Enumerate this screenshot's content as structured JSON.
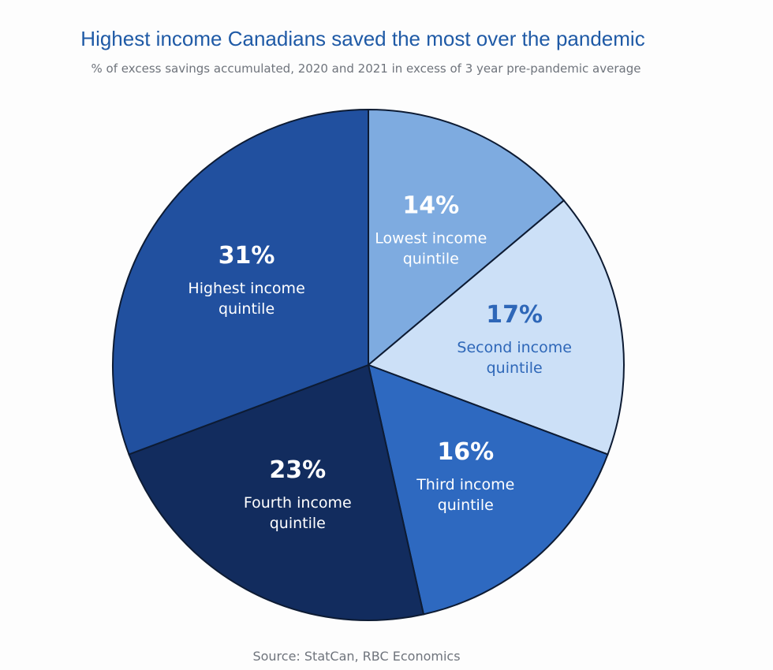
{
  "header": {
    "title": "Highest income Canadians saved the most over the pandemic",
    "subtitle": "% of excess savings accumulated, 2020 and 2021 in excess of 3 year pre-pandemic average"
  },
  "footer": {
    "source": "Source: StatCan, RBC Economics"
  },
  "chart_data": {
    "type": "pie",
    "title": "Highest income Canadians saved the most over the pandemic",
    "subtitle": "% of excess savings accumulated, 2020 and 2021 in excess of 3 year pre-pandemic average",
    "unit": "%",
    "start_angle_deg": 0,
    "direction": "clockwise",
    "slices": [
      {
        "id": "lowest",
        "pct_label": "14%",
        "label_lines": [
          "Lowest income",
          "quintile"
        ],
        "value": 14,
        "color": "#7eabe0",
        "text_color": "#ffffff"
      },
      {
        "id": "second",
        "pct_label": "17%",
        "label_lines": [
          "Second income",
          "quintile"
        ],
        "value": 17,
        "color": "#cce0f7",
        "text_color": "#2e67b8"
      },
      {
        "id": "third",
        "pct_label": "16%",
        "label_lines": [
          "Third income",
          "quintile"
        ],
        "value": 16,
        "color": "#2e69c0",
        "text_color": "#ffffff"
      },
      {
        "id": "fourth",
        "pct_label": "23%",
        "label_lines": [
          "Fourth income",
          "quintile"
        ],
        "value": 23,
        "color": "#122c5e",
        "text_color": "#ffffff"
      },
      {
        "id": "highest",
        "pct_label": "31%",
        "label_lines": [
          "Highest income",
          "quintile"
        ],
        "value": 31,
        "color": "#21509f",
        "text_color": "#ffffff"
      }
    ]
  }
}
